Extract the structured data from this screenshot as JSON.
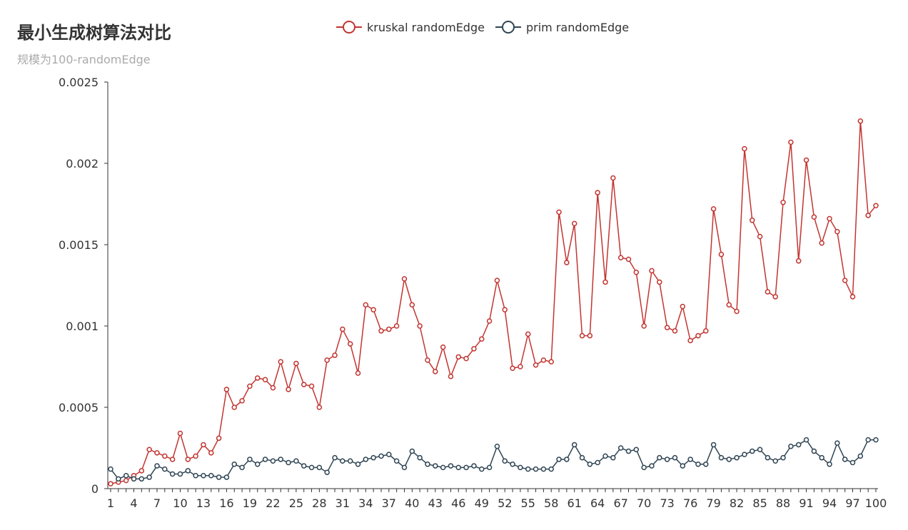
{
  "chart_data": {
    "type": "line",
    "title": "最小生成树算法对比",
    "subtitle": "规模为100-randomEdge",
    "xlabel": "",
    "ylabel": "",
    "x": [
      1,
      2,
      3,
      4,
      5,
      6,
      7,
      8,
      9,
      10,
      11,
      12,
      13,
      14,
      15,
      16,
      17,
      18,
      19,
      20,
      21,
      22,
      23,
      24,
      25,
      26,
      27,
      28,
      29,
      30,
      31,
      32,
      33,
      34,
      35,
      36,
      37,
      38,
      39,
      40,
      41,
      42,
      43,
      44,
      45,
      46,
      47,
      48,
      49,
      50,
      51,
      52,
      53,
      54,
      55,
      56,
      57,
      58,
      59,
      60,
      61,
      62,
      63,
      64,
      65,
      66,
      67,
      68,
      69,
      70,
      71,
      72,
      73,
      74,
      75,
      76,
      77,
      78,
      79,
      80,
      81,
      82,
      83,
      84,
      85,
      86,
      87,
      88,
      89,
      90,
      91,
      92,
      93,
      94,
      95,
      96,
      97,
      98,
      99,
      100
    ],
    "x_tick_labels": [
      "1",
      "4",
      "7",
      "10",
      "13",
      "16",
      "19",
      "22",
      "25",
      "28",
      "31",
      "34",
      "37",
      "40",
      "43",
      "46",
      "49",
      "52",
      "55",
      "58",
      "61",
      "64",
      "67",
      "70",
      "73",
      "76",
      "79",
      "82",
      "85",
      "88",
      "91",
      "94",
      "97",
      "100"
    ],
    "ylim": [
      0,
      0.0025
    ],
    "y_ticks": [
      0,
      0.0005,
      0.001,
      0.0015,
      0.002,
      0.0025
    ],
    "y_tick_labels": [
      "0",
      "0.0005",
      "0.001",
      "0.0015",
      "0.002",
      "0.0025"
    ],
    "grid": false,
    "legend_position": "top-center",
    "series": [
      {
        "name": "kruskal randomEdge",
        "color": "#c23531",
        "values": [
          3e-05,
          4e-05,
          5e-05,
          8e-05,
          0.00011,
          0.00024,
          0.00022,
          0.0002,
          0.00018,
          0.00034,
          0.00018,
          0.0002,
          0.00027,
          0.00022,
          0.00031,
          0.00061,
          0.0005,
          0.00054,
          0.00063,
          0.00068,
          0.00067,
          0.00062,
          0.00078,
          0.00061,
          0.00077,
          0.00064,
          0.00063,
          0.0005,
          0.00079,
          0.00082,
          0.00098,
          0.00089,
          0.00071,
          0.00113,
          0.0011,
          0.00097,
          0.00098,
          0.001,
          0.00129,
          0.00113,
          0.001,
          0.00079,
          0.00072,
          0.00087,
          0.00069,
          0.00081,
          0.0008,
          0.00086,
          0.00092,
          0.00103,
          0.00128,
          0.0011,
          0.00074,
          0.00075,
          0.00095,
          0.00076,
          0.00079,
          0.00078,
          0.0017,
          0.00139,
          0.00163,
          0.00094,
          0.00094,
          0.00182,
          0.00127,
          0.00191,
          0.00142,
          0.00141,
          0.00133,
          0.001,
          0.00134,
          0.00127,
          0.00099,
          0.00097,
          0.00112,
          0.00091,
          0.00094,
          0.00097,
          0.00172,
          0.00144,
          0.00113,
          0.00109,
          0.00209,
          0.00165,
          0.00155,
          0.00121,
          0.00118,
          0.00176,
          0.00213,
          0.0014,
          0.00202,
          0.00167,
          0.00151,
          0.00166,
          0.00158,
          0.00128,
          0.00118,
          0.00226,
          0.00168,
          0.00174
        ]
      },
      {
        "name": "prim randomEdge",
        "color": "#2f4554",
        "values": [
          0.00012,
          6e-05,
          8e-05,
          6e-05,
          6e-05,
          7e-05,
          0.00014,
          0.00012,
          9e-05,
          9e-05,
          0.00011,
          8e-05,
          8e-05,
          8e-05,
          7e-05,
          7e-05,
          0.00015,
          0.00013,
          0.00018,
          0.00015,
          0.00018,
          0.00017,
          0.00018,
          0.00016,
          0.00017,
          0.00014,
          0.00013,
          0.00013,
          0.0001,
          0.00019,
          0.00017,
          0.00017,
          0.00015,
          0.00018,
          0.00019,
          0.0002,
          0.00021,
          0.00017,
          0.00013,
          0.00023,
          0.00019,
          0.00015,
          0.00014,
          0.00013,
          0.00014,
          0.00013,
          0.00013,
          0.00014,
          0.00012,
          0.00013,
          0.00026,
          0.00017,
          0.00015,
          0.00013,
          0.00012,
          0.00012,
          0.00012,
          0.00012,
          0.00018,
          0.00018,
          0.00027,
          0.00019,
          0.00015,
          0.00016,
          0.0002,
          0.00019,
          0.00025,
          0.00023,
          0.00024,
          0.00013,
          0.00014,
          0.00019,
          0.00018,
          0.00019,
          0.00014,
          0.00018,
          0.00015,
          0.00015,
          0.00027,
          0.00019,
          0.00018,
          0.00019,
          0.00021,
          0.00023,
          0.00024,
          0.00019,
          0.00017,
          0.00019,
          0.00026,
          0.00027,
          0.0003,
          0.00023,
          0.00019,
          0.00015,
          0.00028,
          0.00018,
          0.00016,
          0.0002,
          0.0003,
          0.0003
        ]
      }
    ]
  }
}
